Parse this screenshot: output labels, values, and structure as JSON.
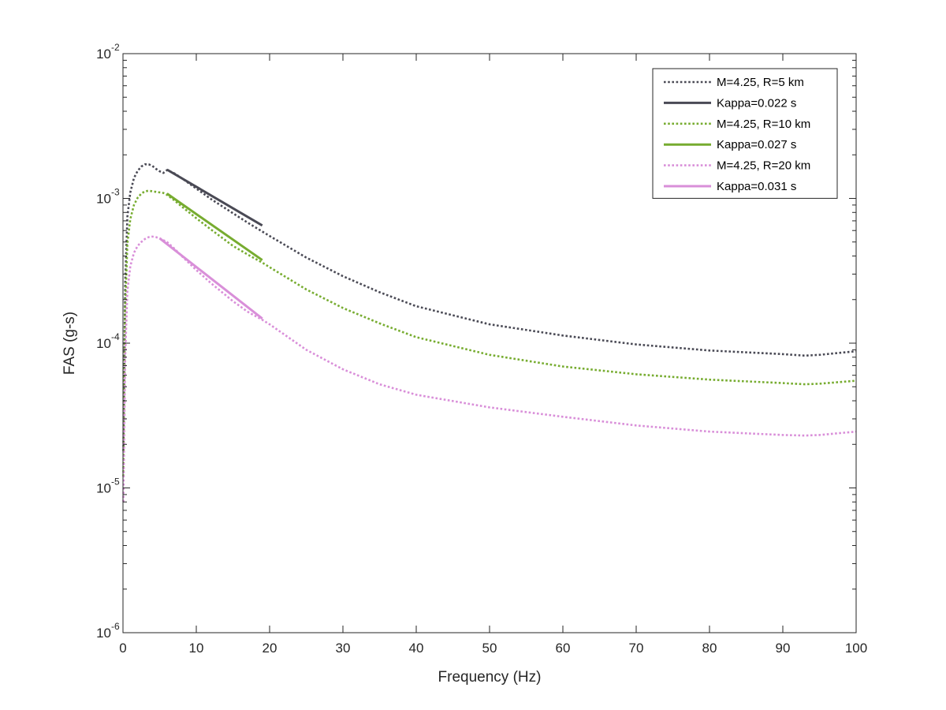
{
  "chart_data": {
    "type": "line",
    "title": "",
    "xlabel": "Frequency (Hz)",
    "ylabel": "FAS (g-s)",
    "xlim": [
      0,
      100
    ],
    "ylim": [
      1e-06,
      0.01
    ],
    "yscale": "log",
    "grid": false,
    "legend_position": "top-right",
    "x_ticks": [
      0,
      10,
      20,
      30,
      40,
      50,
      60,
      70,
      80,
      90,
      100
    ],
    "x_tick_labels": [
      "0",
      "10",
      "20",
      "30",
      "40",
      "50",
      "60",
      "70",
      "80",
      "90",
      "100"
    ],
    "y_ticks": [
      {
        "value": 0.01,
        "base": "10",
        "exp": "-2"
      },
      {
        "value": 0.001,
        "base": "10",
        "exp": "-3"
      },
      {
        "value": 0.0001,
        "base": "10",
        "exp": "-4"
      },
      {
        "value": 1e-05,
        "base": "10",
        "exp": "-5"
      },
      {
        "value": 1e-06,
        "base": "10",
        "exp": "-6"
      }
    ],
    "series": [
      {
        "name": "M=4.25, R=5 km",
        "style": "dotted",
        "color": "#4a4a55",
        "x": [
          0.05,
          0.3,
          0.6,
          1,
          1.5,
          2,
          2.5,
          3,
          3.5,
          4,
          4.5,
          5,
          5.5,
          6,
          7,
          8,
          10,
          12,
          15,
          17,
          19,
          20,
          25,
          30,
          35,
          40,
          50,
          60,
          70,
          80,
          90,
          93,
          95,
          100
        ],
        "y": [
          1.8e-05,
          0.00026,
          0.00075,
          0.0011,
          0.00138,
          0.00155,
          0.00166,
          0.00172,
          0.00172,
          0.00168,
          0.0016,
          0.00154,
          0.0015,
          0.00157,
          0.00149,
          0.00138,
          0.00117,
          0.00099,
          0.00079,
          0.00068,
          0.00059,
          0.00055,
          0.00039,
          0.00029,
          0.000225,
          0.00018,
          0.000135,
          0.000113,
          9.8e-05,
          8.9e-05,
          8.4e-05,
          8.2e-05,
          8.3e-05,
          8.8e-05
        ]
      },
      {
        "name": "Kappa=0.022 s",
        "style": "solid",
        "color": "#4a4a55",
        "x": [
          6,
          19
        ],
        "y": [
          0.00158,
          0.00065
        ]
      },
      {
        "name": "M=4.25, R=10 km",
        "style": "dotted",
        "color": "#77ac30",
        "x": [
          0.05,
          0.3,
          0.6,
          1,
          1.5,
          2,
          2.5,
          3,
          3.5,
          4,
          4.5,
          5,
          5.5,
          6,
          7,
          8,
          10,
          12,
          15,
          17,
          19,
          20,
          25,
          30,
          35,
          40,
          50,
          60,
          70,
          80,
          90,
          93,
          95,
          100
        ],
        "y": [
          1.2e-05,
          0.00017,
          0.00049,
          0.00072,
          0.0009,
          0.00101,
          0.00108,
          0.00112,
          0.00113,
          0.00112,
          0.00111,
          0.0011,
          0.00109,
          0.00106,
          0.00097,
          0.00088,
          0.00073,
          0.00061,
          0.00047,
          0.00041,
          0.00036,
          0.000335,
          0.000235,
          0.000175,
          0.000137,
          0.00011,
          8.3e-05,
          6.9e-05,
          6.1e-05,
          5.6e-05,
          5.3e-05,
          5.2e-05,
          5.25e-05,
          5.5e-05
        ]
      },
      {
        "name": "Kappa=0.027 s",
        "style": "solid",
        "color": "#77ac30",
        "x": [
          6,
          19
        ],
        "y": [
          0.00108,
          0.000375
        ]
      },
      {
        "name": "M=4.25, R=20 km",
        "style": "dotted",
        "color": "#d98fd9",
        "x": [
          0.05,
          0.3,
          0.6,
          1,
          1.5,
          2,
          2.5,
          3,
          3.5,
          4,
          4.5,
          5,
          5.5,
          6,
          7,
          8,
          10,
          12,
          15,
          17,
          19,
          20,
          25,
          30,
          35,
          40,
          50,
          60,
          70,
          80,
          90,
          93,
          95,
          100
        ],
        "y": [
          8e-06,
          8e-05,
          0.00023,
          0.00034,
          0.00042,
          0.00047,
          0.0005,
          0.000525,
          0.00054,
          0.000545,
          0.00054,
          0.00053,
          0.000515,
          0.0005,
          0.00045,
          0.0004,
          0.00032,
          0.00026,
          0.000195,
          0.000165,
          0.000145,
          0.000135,
          9e-05,
          6.6e-05,
          5.2e-05,
          4.4e-05,
          3.6e-05,
          3.1e-05,
          2.7e-05,
          2.45e-05,
          2.32e-05,
          2.3e-05,
          2.32e-05,
          2.45e-05
        ]
      },
      {
        "name": "Kappa=0.031 s",
        "style": "solid",
        "color": "#d98fd9",
        "x": [
          5,
          19
        ],
        "y": [
          0.00053,
          0.000148
        ]
      }
    ]
  }
}
